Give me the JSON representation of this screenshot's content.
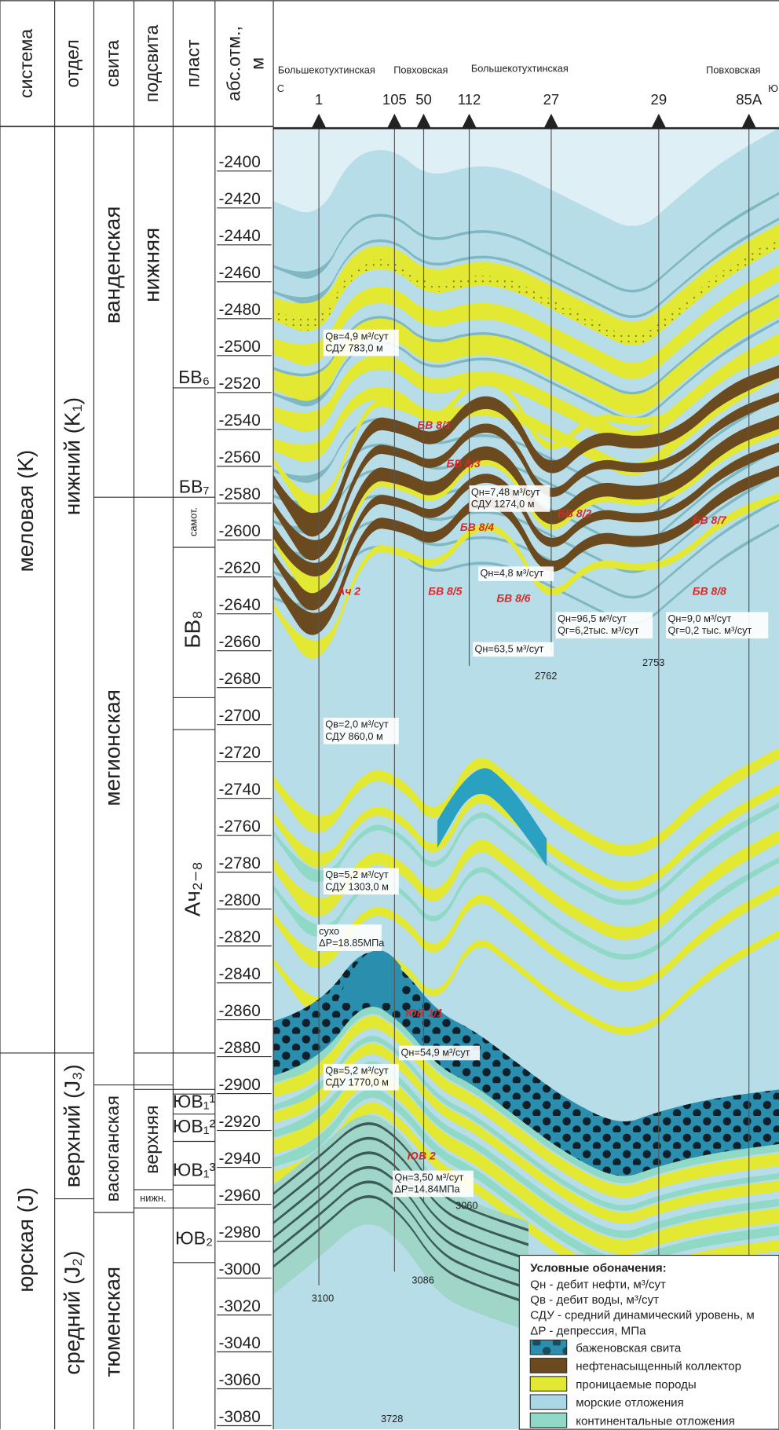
{
  "header": {
    "columns": [
      "система",
      "отдел",
      "свита",
      "подсвита",
      "пласт",
      [
        "абс.отм.,",
        "м"
      ]
    ]
  },
  "columns": {
    "system": [
      "меловая (K)",
      "юрская (J)"
    ],
    "series": [
      "нижний (K₁)",
      "верхний (J₃)",
      "средний (J₂)"
    ],
    "suite": [
      "ванденская",
      "мегионская",
      "васюганская",
      "тюменская"
    ],
    "subsuite": [
      "нижняя",
      "верхняя",
      "нижн."
    ],
    "layer": [
      "БВ₆",
      "БВ₇",
      "самот.",
      "БВ₈",
      "Ач₂₋₈",
      "ЮВ₁¹",
      "ЮВ₁²",
      "ЮВ₁³",
      "ЮВ₂"
    ]
  },
  "depth_scale": [
    -2400,
    -2420,
    -2440,
    -2460,
    -2480,
    -2500,
    -2520,
    -2540,
    -2560,
    -2580,
    -2600,
    -2620,
    -2640,
    -2660,
    -2680,
    -2700,
    -2720,
    -2740,
    -2760,
    -2780,
    -2800,
    -2820,
    -2840,
    -2860,
    -2880,
    -2900,
    -2920,
    -2940,
    -2960,
    -2980,
    -3000,
    -3020,
    -3040,
    -3060,
    -3080
  ],
  "fields": [
    "Большекотухтинская",
    "Повховская",
    "Большекотухтинская",
    "Повховская"
  ],
  "directions": [
    "С",
    "Ю"
  ],
  "wells": [
    "1",
    "105",
    "50",
    "112",
    "27",
    "29",
    "85A"
  ],
  "well_bottoms": [
    "3100",
    "3086",
    "3060",
    "2762",
    "2753",
    "3728"
  ],
  "annotations": [
    [
      "Qв=4,9 м³/сут",
      "СДУ 783,0 м"
    ],
    [
      "Qн=7,48 м³/сут",
      "СДУ 1274,0 м"
    ],
    [
      "Qн=4,8 м³/сут"
    ],
    [
      "Qн=96,5 м³/сут",
      "Qг=6,2тыс. м³/сут"
    ],
    [
      "Qн=9,0 м³/сут",
      "Qг=0,2 тыс. м³/сут"
    ],
    [
      "Qн=63,5 м³/сут"
    ],
    [
      "Qв=2,0 м³/сут",
      "СДУ 860,0 м"
    ],
    [
      "Qв=5,2 м³/сут",
      "СДУ 1303,0 м"
    ],
    [
      "сухо",
      "ΔP=18.85МПа"
    ],
    [
      "Qн=54,9 м³/сут"
    ],
    [
      "Qв=5,2 м³/сут",
      "СДУ 1770,0 м"
    ],
    [
      "Qн=3,50 м³/сут",
      "ΔP=14.84МПа"
    ]
  ],
  "layer_labels": [
    "БВ 8/1",
    "БВ 8/3",
    "БВ 8/2",
    "БВ 8/4",
    "БВ 8/5",
    "БВ 8/6",
    "БВ 8/7",
    "БВ 8/8",
    "Ач 2",
    "ЮВ 1/1",
    "ЮВ 2"
  ],
  "legend": {
    "title": "Условные обоначения:",
    "notes": [
      "Qн - дебит нефти, м³/сут",
      "Qв - дебит воды, м³/сут",
      "СДУ - средний динамический уровень, м",
      "ΔP - депрессия, МПа"
    ],
    "items": [
      {
        "label": "баженовская свита",
        "color": "#2a8fae"
      },
      {
        "label": "нефтенасыщенный коллектор",
        "color": "#6b4a1f"
      },
      {
        "label": "проницаемые породы",
        "color": "#e3e832"
      },
      {
        "label": "морские отложения",
        "color": "#a9d7e6"
      },
      {
        "label": "континентальные отложения",
        "color": "#8fd9c6"
      }
    ]
  }
}
